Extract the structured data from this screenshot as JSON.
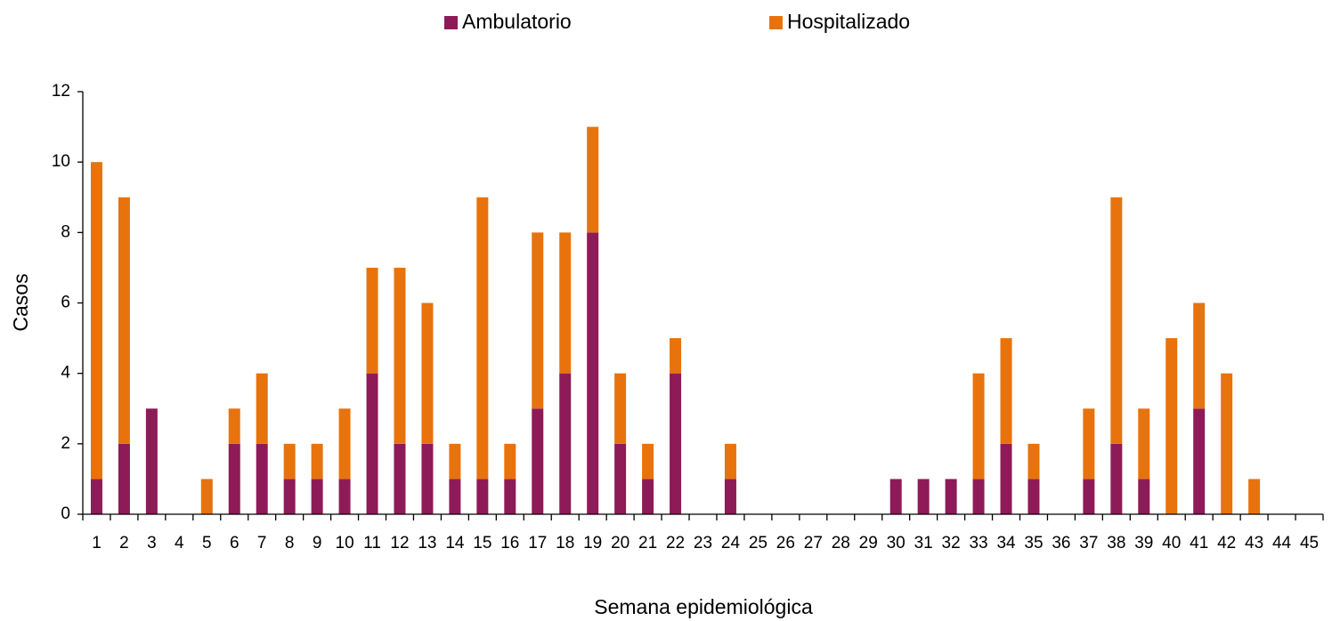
{
  "chart_data": {
    "type": "stacked_bar",
    "xlabel": "Semana epidemiológica",
    "ylabel": "Casos",
    "categories": [
      "1",
      "2",
      "3",
      "4",
      "5",
      "6",
      "7",
      "8",
      "9",
      "10",
      "11",
      "12",
      "13",
      "14",
      "15",
      "16",
      "17",
      "18",
      "19",
      "20",
      "21",
      "22",
      "23",
      "24",
      "25",
      "26",
      "27",
      "28",
      "29",
      "30",
      "31",
      "32",
      "33",
      "34",
      "35",
      "36",
      "37",
      "38",
      "39",
      "40",
      "41",
      "42",
      "43",
      "44",
      "45"
    ],
    "series": [
      {
        "name": "Ambulatorio",
        "color": "#8e1b58",
        "values": [
          1,
          2,
          3,
          0,
          0,
          2,
          2,
          1,
          1,
          1,
          4,
          2,
          2,
          1,
          1,
          1,
          3,
          4,
          8,
          2,
          1,
          4,
          0,
          1,
          0,
          0,
          0,
          0,
          0,
          1,
          1,
          1,
          1,
          2,
          1,
          0,
          1,
          2,
          1,
          0,
          3,
          0,
          0,
          0,
          0
        ]
      },
      {
        "name": "Hospitalizado",
        "color": "#e8730c",
        "values": [
          9,
          7,
          0,
          0,
          1,
          1,
          2,
          1,
          1,
          2,
          3,
          5,
          4,
          1,
          8,
          1,
          5,
          4,
          3,
          2,
          1,
          1,
          0,
          1,
          0,
          0,
          0,
          0,
          0,
          0,
          0,
          0,
          3,
          3,
          1,
          0,
          2,
          7,
          2,
          5,
          3,
          4,
          1,
          0,
          0
        ]
      }
    ],
    "ylim": [
      0,
      12
    ],
    "yticks": [
      0,
      2,
      4,
      6,
      8,
      10,
      12
    ],
    "grid": false,
    "legend": "top"
  }
}
